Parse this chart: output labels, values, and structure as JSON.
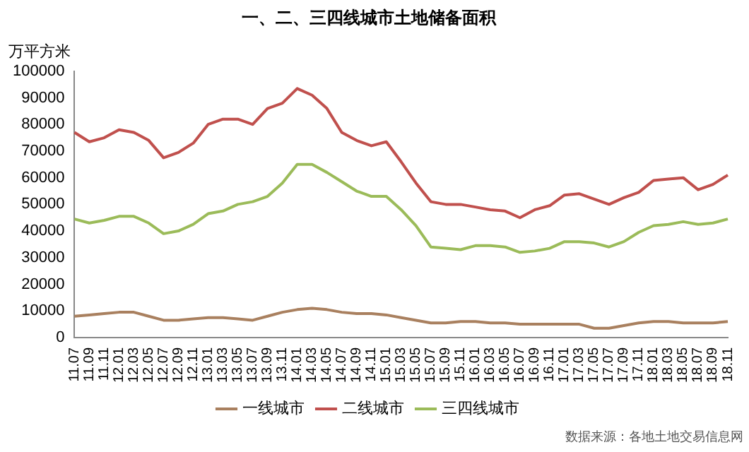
{
  "chart_data": {
    "type": "line",
    "title": "一、二、三四线城市土地储备面积",
    "ylabel": "万平方米",
    "categories": [
      "11.07",
      "11.09",
      "11.11",
      "12.01",
      "12.03",
      "12.05",
      "12.07",
      "12.09",
      "12.11",
      "13.01",
      "13.03",
      "13.05",
      "13.07",
      "13.09",
      "13.11",
      "14.01",
      "14.03",
      "14.05",
      "14.07",
      "14.09",
      "14.11",
      "15.01",
      "15.03",
      "15.05",
      "15.07",
      "15.09",
      "15.11",
      "16.01",
      "16.03",
      "16.05",
      "16.07",
      "16.09",
      "16.11",
      "17.01",
      "17.03",
      "17.05",
      "17.07",
      "17.09",
      "17.11",
      "18.01",
      "18.03",
      "18.05",
      "18.07",
      "18.09",
      "18.11"
    ],
    "series": [
      {
        "name": "一线城市",
        "color": "#a9805f",
        "values": [
          8000,
          8500,
          9000,
          9500,
          9500,
          8000,
          6500,
          6500,
          7000,
          7500,
          7500,
          7000,
          6500,
          8000,
          9500,
          10500,
          11000,
          10500,
          9500,
          9000,
          9000,
          8500,
          7500,
          6500,
          5500,
          5500,
          6000,
          6000,
          5500,
          5500,
          5000,
          5000,
          5000,
          5000,
          5000,
          3500,
          3500,
          4500,
          5500,
          6000,
          6000,
          5500,
          5500,
          5500,
          6000
        ]
      },
      {
        "name": "二线城市",
        "color": "#c0504d",
        "values": [
          77000,
          73500,
          75000,
          78000,
          77000,
          74000,
          67500,
          69500,
          73000,
          80000,
          82000,
          82000,
          80000,
          86000,
          88000,
          93500,
          91000,
          86000,
          77000,
          74000,
          72000,
          73500,
          66000,
          58000,
          51000,
          50000,
          50000,
          49000,
          48000,
          47500,
          45000,
          48000,
          49500,
          53500,
          54000,
          52000,
          50000,
          52500,
          54500,
          59000,
          59500,
          60000,
          55500,
          57500,
          61000
        ]
      },
      {
        "name": "三四线城市",
        "color": "#9bbb59",
        "values": [
          44500,
          43000,
          44000,
          45500,
          45500,
          43000,
          39000,
          40000,
          42500,
          46500,
          47500,
          50000,
          51000,
          53000,
          58000,
          65000,
          65000,
          62000,
          58500,
          55000,
          53000,
          53000,
          48000,
          42000,
          34000,
          33500,
          33000,
          34500,
          34500,
          34000,
          32000,
          32500,
          33500,
          36000,
          36000,
          35500,
          34000,
          36000,
          39500,
          42000,
          42500,
          43500,
          42500,
          43000,
          44500
        ]
      }
    ],
    "ylim": [
      0,
      100000
    ],
    "yticks": [
      0,
      10000,
      20000,
      30000,
      40000,
      50000,
      60000,
      70000,
      80000,
      90000,
      100000
    ],
    "grid": false,
    "legend": "bottom",
    "marker": "none",
    "line_style": "solid",
    "annotations": [
      "数据来源：各地土地交易信息网"
    ]
  }
}
